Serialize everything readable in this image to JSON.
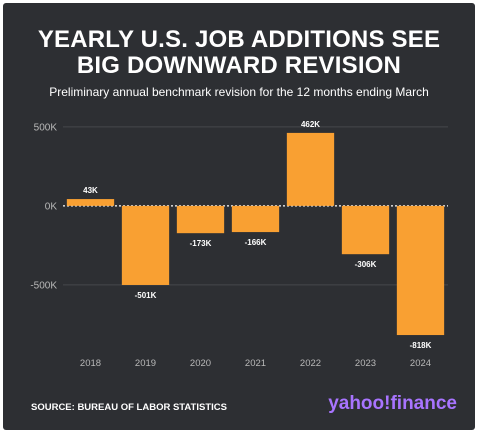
{
  "header": {
    "title": "YEARLY U.S. JOB ADDITIONS SEE\nBIG DOWNWARD REVISION",
    "subtitle": "Preliminary annual benchmark revision for the 12 months ending March"
  },
  "footer": {
    "source": "SOURCE: BUREAU OF LABOR STATISTICS",
    "logo": "yahoo!finance"
  },
  "colors": {
    "background": "#2d2f33",
    "bar": "#f9a032",
    "text": "#ffffff",
    "axis_text": "#b8b8b8",
    "logo": "#a874ff"
  },
  "chart_data": {
    "type": "bar",
    "categories": [
      "2018",
      "2019",
      "2020",
      "2021",
      "2022",
      "2023",
      "2024"
    ],
    "values": [
      43,
      -501,
      -173,
      -166,
      462,
      -306,
      -818
    ],
    "data_labels": [
      "43K",
      "-501K",
      "-173K",
      "-166K",
      "462K",
      "-306K",
      "-818K"
    ],
    "ylim": [
      -900,
      550
    ],
    "yticks": [
      500,
      0,
      -500
    ],
    "ytick_labels": [
      "500K",
      "0K",
      "-500K"
    ],
    "grid": true,
    "xlabel": "",
    "ylabel": ""
  }
}
